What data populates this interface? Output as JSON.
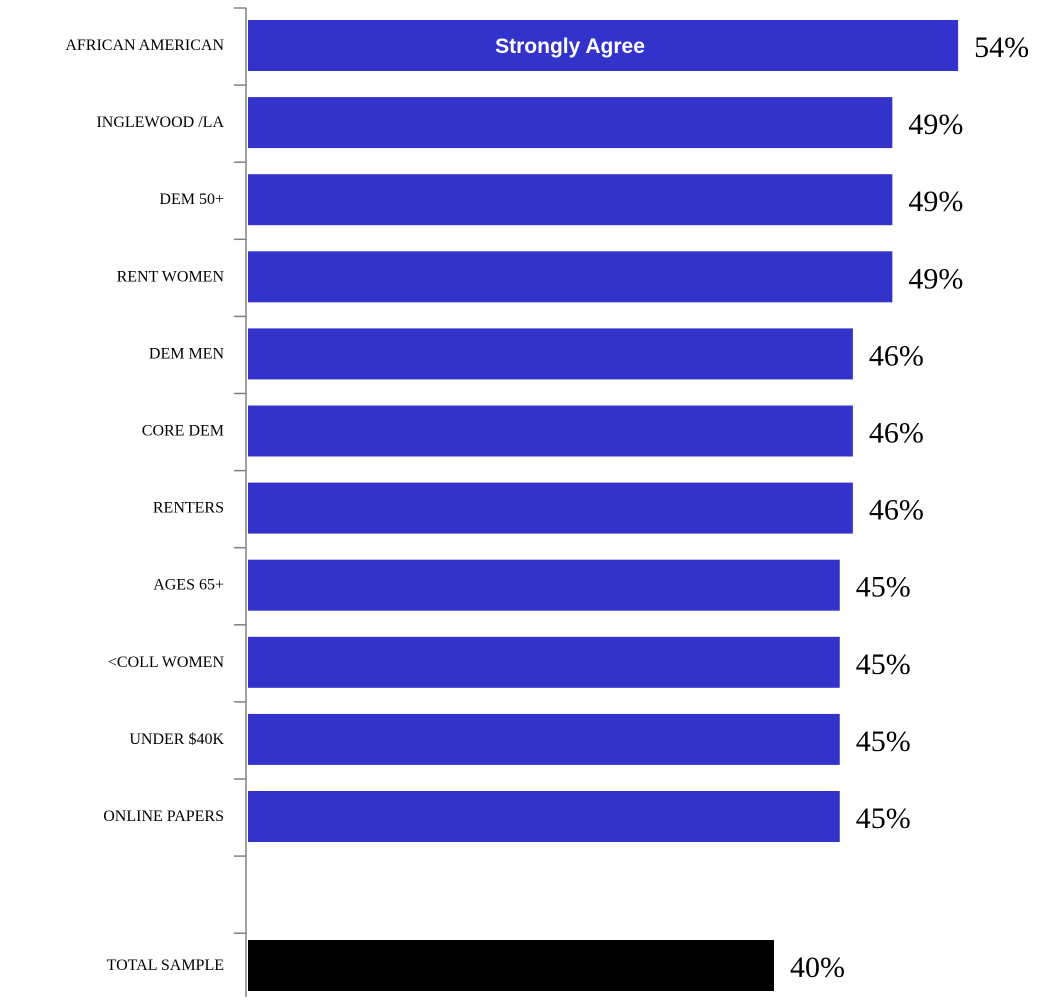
{
  "chart_data": {
    "type": "bar",
    "orientation": "horizontal",
    "categories": [
      "AFRICAN AMERICAN",
      "INGLEWOOD /LA",
      "DEM 50+",
      "RENT WOMEN",
      "DEM MEN",
      "CORE DEM",
      "RENTERS",
      "AGES 65+",
      "<COLL WOMEN",
      "UNDER $40K",
      "ONLINE PAPERS",
      "TOTAL SAMPLE"
    ],
    "values": [
      54,
      49,
      49,
      49,
      46,
      46,
      46,
      45,
      45,
      45,
      45,
      40
    ],
    "value_labels": [
      "54%",
      "49%",
      "49%",
      "49%",
      "46%",
      "46%",
      "46%",
      "45%",
      "45%",
      "45%",
      "45%",
      "40%"
    ],
    "series": [
      {
        "name": "Strongly Agree",
        "values": [
          54,
          49,
          49,
          49,
          46,
          46,
          46,
          45,
          45,
          45,
          45,
          40
        ]
      }
    ],
    "highlight_category": "TOTAL SAMPLE",
    "xlim": [
      0,
      55
    ],
    "grid": false,
    "legend_placement": "inside-top-bar",
    "colors": {
      "bar": "#3333cc",
      "highlight": "#000000",
      "axis": "#808080"
    }
  }
}
